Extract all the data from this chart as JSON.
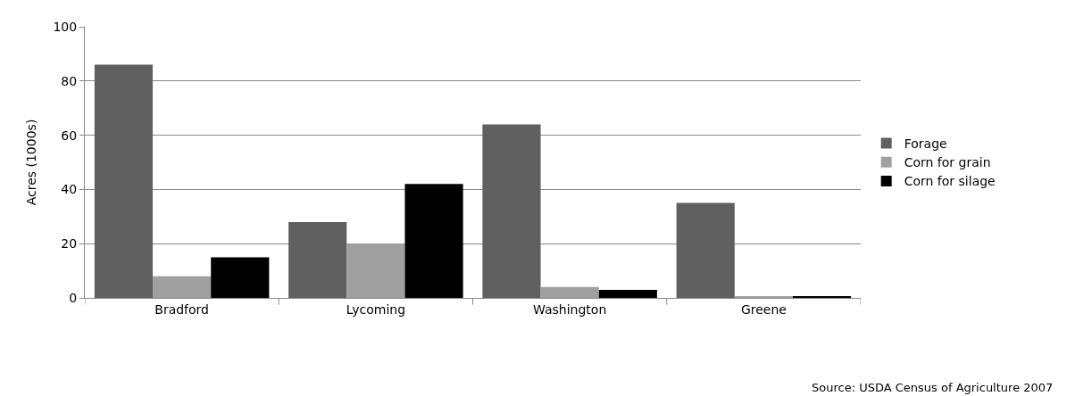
{
  "chart_data": {
    "type": "bar",
    "ylabel": "Acres (1000s)",
    "categories": [
      "Bradford",
      "Lycoming",
      "Washington",
      "Greene"
    ],
    "series": [
      {
        "name": "Forage",
        "color": "#606060",
        "values": [
          86,
          28,
          64,
          35
        ]
      },
      {
        "name": "Corn for grain",
        "color": "#a0a0a0",
        "values": [
          8,
          20,
          4,
          0.6
        ]
      },
      {
        "name": "Corn for silage",
        "color": "#000000",
        "values": [
          15,
          42,
          3,
          0.5
        ]
      }
    ],
    "ylim": [
      0,
      100
    ],
    "yticks": [
      0,
      20,
      40,
      60,
      80,
      100
    ],
    "grid": "y",
    "legend": "right",
    "annotations": [
      "Source: USDA Census of Agriculture 2007"
    ]
  }
}
